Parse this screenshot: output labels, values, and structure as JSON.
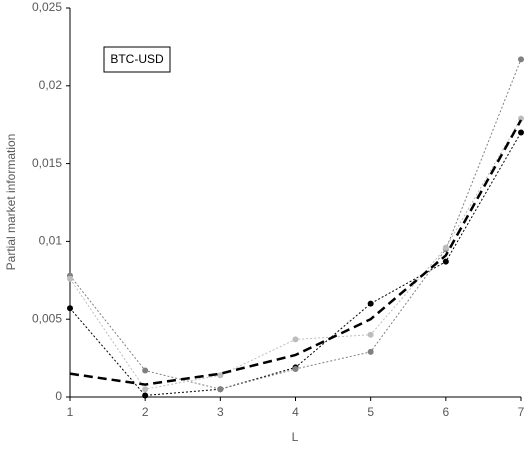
{
  "chart_data": {
    "type": "line",
    "x_label": "L",
    "y_label": "Partial market information",
    "annotation": "BTC-USD",
    "x": [
      1,
      2,
      3,
      4,
      5,
      6,
      7
    ],
    "xlim": [
      1,
      7
    ],
    "xticks": [
      1,
      2,
      3,
      4,
      5,
      6,
      7
    ],
    "ylim": [
      0,
      0.025
    ],
    "yticks": [
      0,
      {
        "value": 0.005,
        "label": "0,005"
      },
      {
        "value": 0.01,
        "label": "0,01"
      },
      {
        "value": 0.015,
        "label": "0,015"
      },
      {
        "value": 0.02,
        "label": "0,02"
      },
      {
        "value": 0.025,
        "label": "0,025"
      }
    ],
    "grid": false,
    "series": [
      {
        "color": "#000000",
        "style": "dotted",
        "markers": true,
        "values": [
          0.0057,
          0.0001,
          0.0005,
          0.0019,
          0.006,
          0.0087,
          0.017
        ]
      },
      {
        "color": "#808080",
        "style": "dotted",
        "markers": true,
        "values": [
          0.0078,
          0.0017,
          0.0005,
          0.0018,
          0.0029,
          0.0095,
          0.0217
        ]
      },
      {
        "color": "#bdbdbd",
        "style": "dotted",
        "markers": true,
        "values": [
          0.0076,
          0.0005,
          0.0014,
          0.0037,
          0.004,
          0.0096,
          0.0179
        ]
      },
      {
        "color": "#000000",
        "style": "dashed",
        "markers": false,
        "values": [
          0.0015,
          0.0008,
          0.0015,
          0.0027,
          0.005,
          0.0091,
          0.0178
        ]
      }
    ]
  }
}
